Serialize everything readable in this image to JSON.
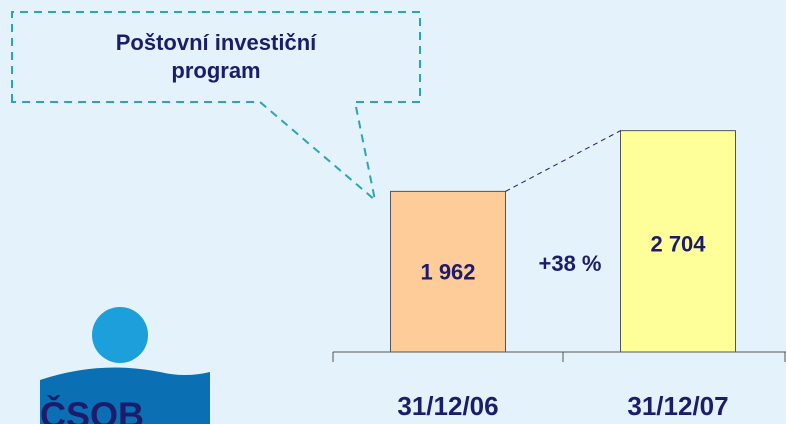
{
  "chart_data": {
    "type": "bar",
    "title": "Poštovní investiční program",
    "categories": [
      "31/12/06",
      "31/12/07"
    ],
    "values": [
      1962,
      2704
    ],
    "value_labels": [
      "1 962",
      "2 704"
    ],
    "colors": [
      "#fdcc99",
      "#ffff99"
    ],
    "ylim": [
      0,
      4300
    ],
    "annotation": "+38 %"
  },
  "logo": "ČSOB"
}
